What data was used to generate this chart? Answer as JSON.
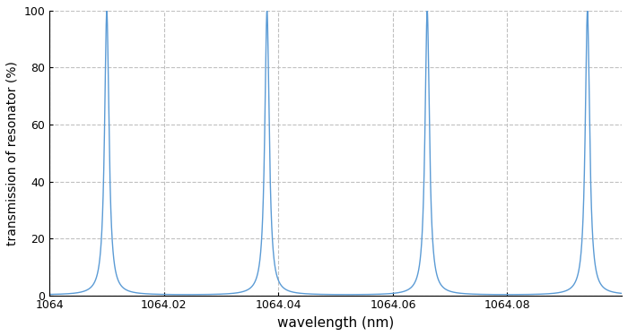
{
  "xlabel": "wavelength (nm)",
  "ylabel": "transmission of resonator (%)",
  "xlim": [
    1064.0,
    1064.1
  ],
  "ylim": [
    0,
    100
  ],
  "xticks": [
    1064.0,
    1064.02,
    1064.04,
    1064.06,
    1064.08
  ],
  "yticks": [
    0,
    20,
    40,
    60,
    80,
    100
  ],
  "line_color": "#5b9bd5",
  "background_color": "#ffffff",
  "grid_color": "#c0c0c0",
  "finesse": 30,
  "fsr_nm": 0.028,
  "lam0": 1064.01,
  "baseline_pct": 2.0,
  "figsize": [
    7.0,
    3.75
  ],
  "dpi": 100,
  "xlabel_fontsize": 11,
  "ylabel_fontsize": 10,
  "tick_fontsize": 9
}
